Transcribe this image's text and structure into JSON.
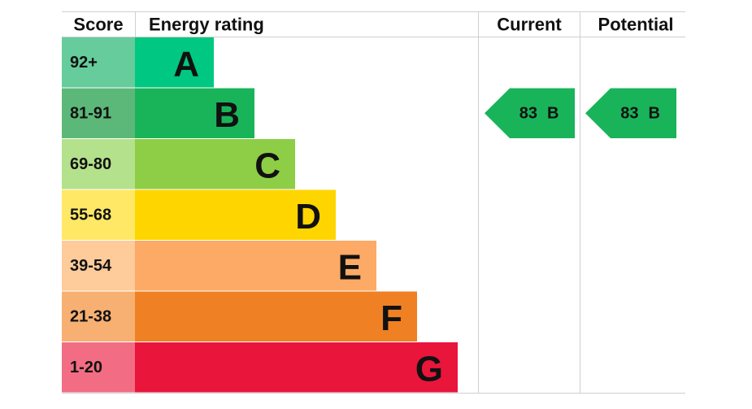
{
  "header": {
    "score": "Score",
    "energy_rating": "Energy rating",
    "current": "Current",
    "potential": "Potential"
  },
  "bands": [
    {
      "score": "92+",
      "letter": "A",
      "score_color": "#66cc9c",
      "bar_color": "#00c781"
    },
    {
      "score": "81-91",
      "letter": "B",
      "score_color": "#5cb878",
      "bar_color": "#19b459"
    },
    {
      "score": "69-80",
      "letter": "C",
      "score_color": "#b4e18b",
      "bar_color": "#8dce46"
    },
    {
      "score": "55-68",
      "letter": "D",
      "score_color": "#ffe866",
      "bar_color": "#ffd500"
    },
    {
      "score": "39-54",
      "letter": "E",
      "score_color": "#fecb9a",
      "bar_color": "#fcaa65"
    },
    {
      "score": "21-38",
      "letter": "F",
      "score_color": "#f7b072",
      "bar_color": "#ef8023"
    },
    {
      "score": "1-20",
      "letter": "G",
      "score_color": "#f26d83",
      "bar_color": "#e9153b"
    }
  ],
  "current": {
    "value": 83,
    "letter": "B",
    "color": "#19b459"
  },
  "potential": {
    "value": 83,
    "letter": "B",
    "color": "#19b459"
  }
}
